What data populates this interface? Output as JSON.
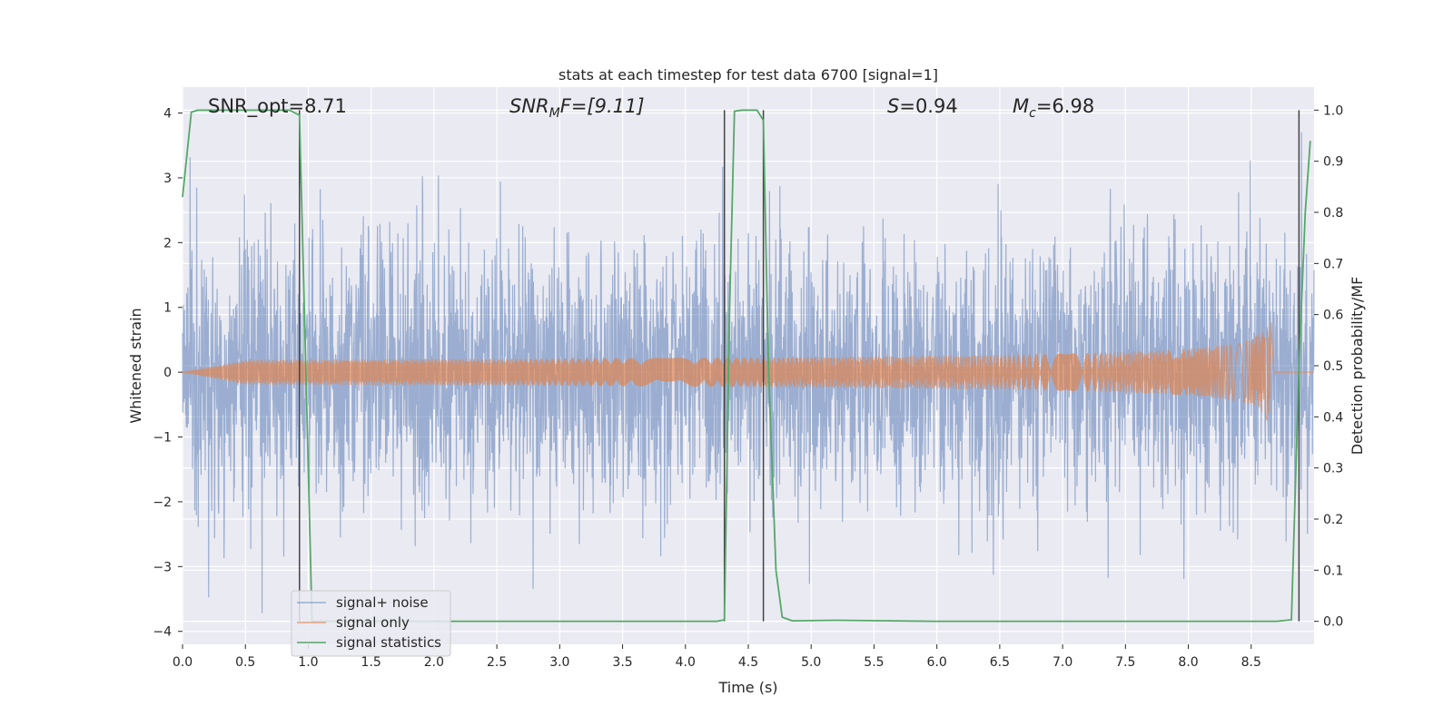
{
  "chart_data": {
    "type": "line",
    "title": "stats at each timestep for test data 6700 [signal=1]",
    "xlabel": "Time (s)",
    "ylabel": "Whitened strain",
    "y2label": "Detection probability/MF",
    "xlim": [
      0,
      9.0
    ],
    "ylim": [
      -4.2,
      4.4
    ],
    "y2lim": [
      -0.045,
      1.045
    ],
    "xticks": [
      0.0,
      0.5,
      1.0,
      1.5,
      2.0,
      2.5,
      3.0,
      3.5,
      4.0,
      4.5,
      5.0,
      5.5,
      6.0,
      6.5,
      7.0,
      7.5,
      8.0,
      8.5
    ],
    "yticks": [
      -4,
      -3,
      -2,
      -1,
      0,
      1,
      2,
      3,
      4
    ],
    "y2ticks": [
      0.0,
      0.1,
      0.2,
      0.3,
      0.4,
      0.5,
      0.6,
      0.7,
      0.8,
      0.9,
      1.0
    ],
    "grid": true,
    "legend_position": "lower-left",
    "annotations": {
      "snr_opt": "SNR_opt=8.71",
      "snr_mf_main": "SNR",
      "snr_mf_sub": "M",
      "snr_mf_rest": "F=[9.11]",
      "s_main": "S",
      "s_rest": "=0.94",
      "mc_main": "M",
      "mc_sub": "c",
      "mc_rest": "=6.98"
    },
    "vertical_markers": [
      0.93,
      4.31,
      4.62,
      8.88
    ],
    "series": [
      {
        "name": "signal+ noise",
        "color": "#4c72b0",
        "axis": "left",
        "description_points": "noise",
        "noise_std": 1.0,
        "x_range": [
          0,
          9.0
        ]
      },
      {
        "name": "signal only",
        "color": "#dd8452",
        "axis": "left",
        "chirp": {
          "start": 4.5,
          "merger": 8.66,
          "peak_amplitude": 1.3,
          "end": 8.68
        }
      },
      {
        "name": "signal statistics",
        "color": "#55a868",
        "axis": "right",
        "x": [
          0.0,
          0.07,
          0.12,
          0.85,
          0.93,
          0.98,
          1.03,
          1.5,
          2.0,
          2.5,
          3.0,
          3.5,
          4.0,
          4.25,
          4.31,
          4.35,
          4.39,
          4.45,
          4.57,
          4.62,
          4.66,
          4.72,
          4.77,
          4.85,
          5.2,
          6.0,
          7.0,
          8.0,
          8.7,
          8.82,
          8.88,
          8.93,
          8.97
        ],
        "y": [
          0.83,
          0.996,
          1.0,
          1.0,
          0.99,
          0.5,
          0.0,
          0.0,
          0.0,
          0.0,
          0.0,
          0.0,
          0.0,
          0.0,
          0.003,
          0.6,
          0.998,
          1.0,
          1.0,
          0.98,
          0.5,
          0.1,
          0.008,
          0.001,
          0.002,
          0.0,
          0.0,
          0.0,
          0.0,
          0.003,
          0.5,
          0.8,
          0.94
        ]
      }
    ]
  }
}
